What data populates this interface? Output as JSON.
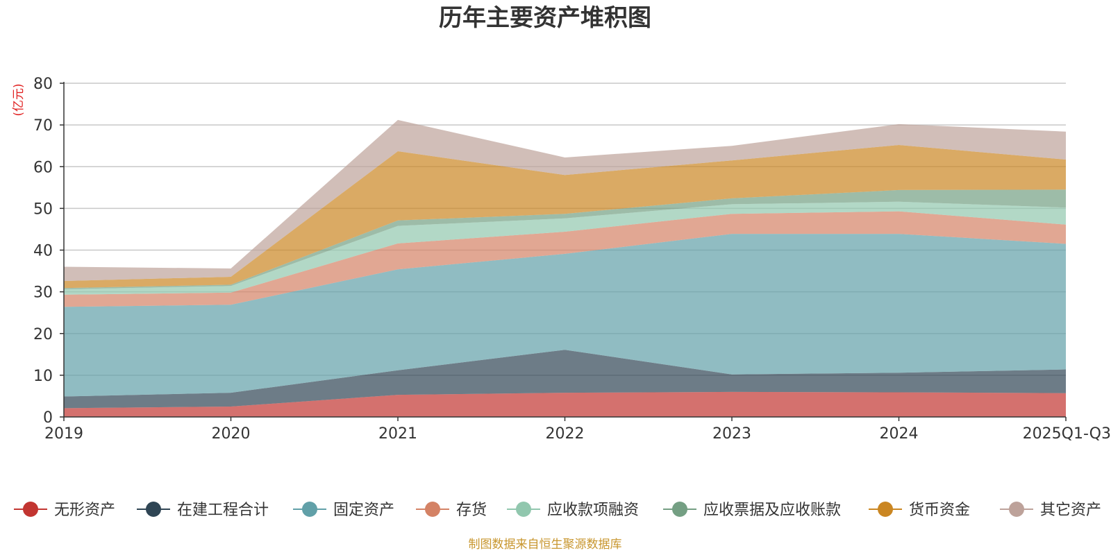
{
  "chart_data": {
    "type": "area",
    "stacked": true,
    "title": "历年主要资产堆积图",
    "unit_label": "(亿元)",
    "categories": [
      "2019",
      "2020",
      "2021",
      "2022",
      "2023",
      "2024",
      "2025Q1-Q3"
    ],
    "ylim": [
      0,
      80
    ],
    "yticks": [
      "0",
      "10",
      "20",
      "30",
      "40",
      "50",
      "60",
      "70",
      "80"
    ],
    "grid": true,
    "legend_position": "bottom",
    "series": [
      {
        "name": "无形资产",
        "color": "#c23531",
        "values": [
          2.1,
          2.5,
          5.3,
          5.8,
          6.0,
          5.9,
          5.7
        ]
      },
      {
        "name": "在建工程合计",
        "color": "#2f4554",
        "values": [
          2.8,
          3.3,
          5.9,
          10.3,
          4.2,
          4.7,
          5.7
        ]
      },
      {
        "name": "固定资产",
        "color": "#61a0a8",
        "values": [
          21.5,
          21.1,
          24.2,
          23.0,
          33.7,
          33.3,
          30.1
        ]
      },
      {
        "name": "存货",
        "color": "#d48265",
        "values": [
          2.9,
          2.9,
          6.2,
          5.3,
          4.8,
          5.4,
          4.6
        ]
      },
      {
        "name": "应收款项融资",
        "color": "#91c7ae",
        "values": [
          1.3,
          1.6,
          4.2,
          3.2,
          2.3,
          2.3,
          4.1
        ]
      },
      {
        "name": "应收票据及应收账款",
        "color": "#749f83",
        "values": [
          0.3,
          0.3,
          1.3,
          1.1,
          1.4,
          2.8,
          4.3
        ]
      },
      {
        "name": "货币资金",
        "color": "#ca8622",
        "values": [
          1.7,
          1.9,
          16.6,
          9.3,
          9.1,
          10.8,
          7.2
        ]
      },
      {
        "name": "其它资产",
        "color": "#bda29a",
        "values": [
          3.4,
          2.0,
          7.5,
          4.2,
          3.5,
          5.0,
          6.7
        ]
      }
    ],
    "source": "制图数据来自恒生聚源数据库"
  }
}
